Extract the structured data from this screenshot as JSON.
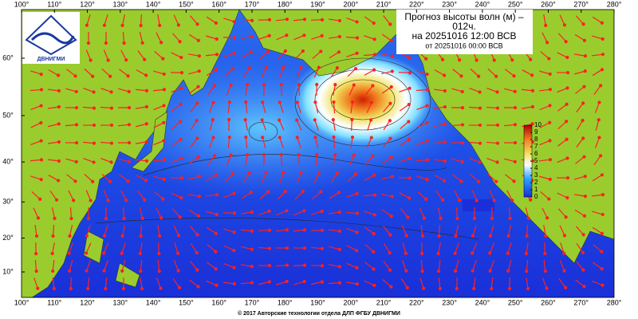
{
  "header": {
    "title": "Прогноз высоты волн (м) –",
    "lead": "012ч.",
    "valid": "на 20251016 12:00 ВСВ",
    "issued": "от 20251016 00:00 ВСВ"
  },
  "logo": {
    "text": "ДВНИГМИ"
  },
  "footer": {
    "copyright": "© 2017 Авторские технологии отдела ДЛП ФГБУ ДВНИГМИ"
  },
  "map": {
    "xlim": [
      100,
      280
    ],
    "lon_ticks": [
      {
        "value": 100,
        "label": "100°"
      },
      {
        "value": 110,
        "label": "110°"
      },
      {
        "value": 120,
        "label": "120°"
      },
      {
        "value": 130,
        "label": "130°"
      },
      {
        "value": 140,
        "label": "140°"
      },
      {
        "value": 150,
        "label": "150°"
      },
      {
        "value": 160,
        "label": "160°"
      },
      {
        "value": 170,
        "label": "170°"
      },
      {
        "value": 180,
        "label": "180°"
      },
      {
        "value": 190,
        "label": "190°"
      },
      {
        "value": 200,
        "label": "200°"
      },
      {
        "value": 210,
        "label": "210°"
      },
      {
        "value": 220,
        "label": "220°"
      },
      {
        "value": 230,
        "label": "230°"
      },
      {
        "value": 240,
        "label": "240°"
      },
      {
        "value": 250,
        "label": "250°"
      },
      {
        "value": 260,
        "label": "260°"
      },
      {
        "value": 270,
        "label": "270°"
      },
      {
        "value": 280,
        "label": "280°"
      }
    ],
    "lat_ticks": [
      {
        "value": 10,
        "label": "10°"
      },
      {
        "value": 20,
        "label": "20°"
      },
      {
        "value": 30,
        "label": "30°"
      },
      {
        "value": 40,
        "label": "40°"
      },
      {
        "value": 50,
        "label": "50°"
      },
      {
        "value": 60,
        "label": "60°"
      }
    ],
    "colorbar": {
      "ticks": [
        0,
        1,
        2,
        3,
        4,
        5,
        6,
        7,
        8,
        9,
        10
      ]
    }
  }
}
